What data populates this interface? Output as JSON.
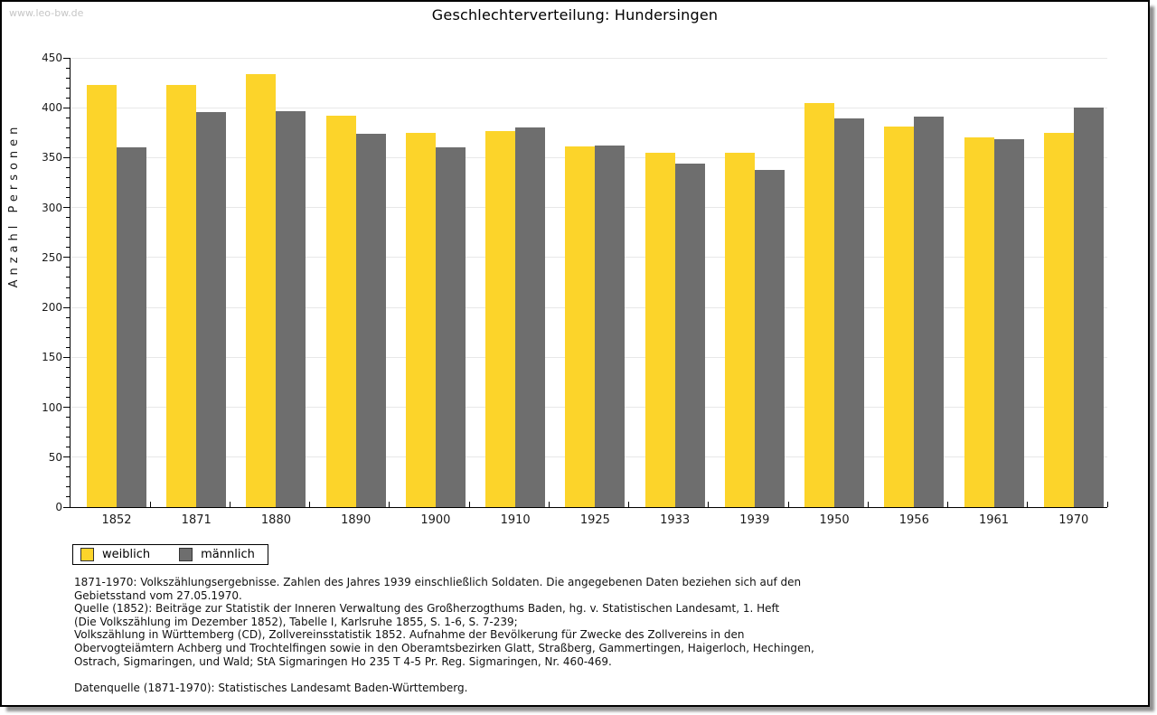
{
  "page": {
    "watermark": "www.leo-bw.de",
    "title": "Geschlechterverteilung: Hundersingen"
  },
  "chart_data": {
    "type": "bar",
    "title": "Geschlechterverteilung: Hundersingen",
    "xlabel": "",
    "ylabel": "Anzahl Personen",
    "ylim": [
      0,
      450
    ],
    "ytick_step": 50,
    "minor_tick_step": 10,
    "grid": true,
    "legend_position": "bottom-left",
    "categories": [
      "1852",
      "1871",
      "1880",
      "1890",
      "1900",
      "1910",
      "1925",
      "1933",
      "1939",
      "1950",
      "1956",
      "1961",
      "1970"
    ],
    "series": [
      {
        "name": "weiblich",
        "color": "#FCD42A",
        "values": [
          423,
          423,
          434,
          392,
          375,
          377,
          361,
          355,
          355,
          405,
          381,
          370,
          375
        ]
      },
      {
        "name": "männlich",
        "color": "#6E6E6E",
        "values": [
          360,
          396,
          397,
          374,
          360,
          380,
          362,
          344,
          338,
          389,
          391,
          369,
          400
        ]
      }
    ]
  },
  "footer": {
    "notes": [
      "1871-1970: Volkszählungsergebnisse. Zahlen des Jahres 1939 einschließlich Soldaten. Die angegebenen Daten beziehen sich auf den",
      "Gebietsstand vom 27.05.1970.",
      "Quelle (1852): Beiträge zur Statistik der Inneren Verwaltung des Großherzogthums Baden, hg. v. Statistischen Landesamt, 1. Heft",
      "(Die Volkszählung im Dezember 1852), Tabelle I, Karlsruhe 1855, S. 1-6, S. 7-239;",
      "Volkszählung in Württemberg (CD), Zollvereinsstatistik 1852. Aufnahme der Bevölkerung für Zwecke des Zollvereins in den",
      "Obervogteiämtern Achberg und Trochtelfingen sowie in den Oberamtsbezirken Glatt, Straßberg, Gammertingen, Haigerloch, Hechingen,",
      "Ostrach, Sigmaringen, und Wald; StA Sigmaringen Ho 235 T 4-5 Pr. Reg. Sigmaringen, Nr. 460-469."
    ],
    "datasource": "Datenquelle (1871-1970): Statistisches Landesamt Baden-Württemberg."
  }
}
